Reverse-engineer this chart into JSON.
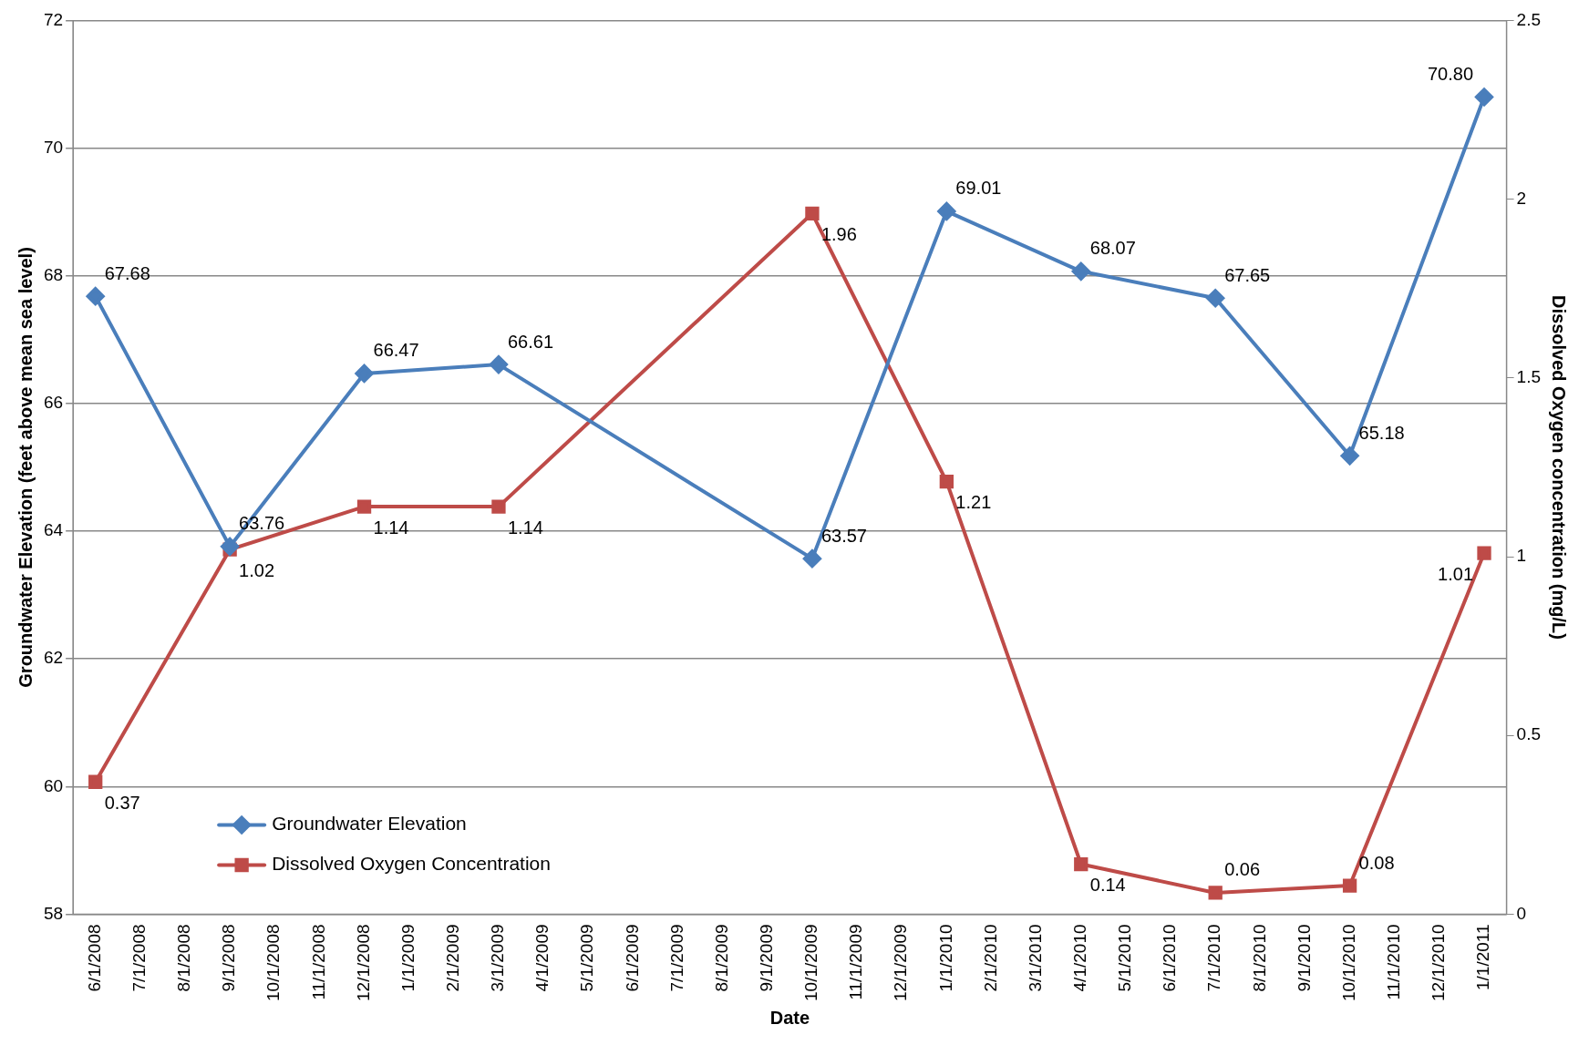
{
  "chart_data": {
    "type": "line",
    "xlabel": "Date",
    "ylabel": "Groundwater Elevation (feet above mean sea level)",
    "y2label": "Dissolved Oxygen concentration (mg/L)",
    "categories": [
      "6/1/2008",
      "7/1/2008",
      "8/1/2008",
      "9/1/2008",
      "10/1/2008",
      "11/1/2008",
      "12/1/2008",
      "1/1/2009",
      "2/1/2009",
      "3/1/2009",
      "4/1/2009",
      "5/1/2009",
      "6/1/2009",
      "7/1/2009",
      "8/1/2009",
      "9/1/2009",
      "10/1/2009",
      "11/1/2009",
      "12/1/2009",
      "1/1/2010",
      "2/1/2010",
      "3/1/2010",
      "4/1/2010",
      "5/1/2010",
      "6/1/2010",
      "7/1/2010",
      "8/1/2010",
      "9/1/2010",
      "10/1/2010",
      "11/1/2010",
      "12/1/2010",
      "1/1/2011"
    ],
    "series": [
      {
        "name": "Groundwater Elevation",
        "color": "#4a7ebb",
        "marker": "diamond",
        "values": [
          67.68,
          null,
          null,
          63.76,
          null,
          null,
          66.47,
          null,
          null,
          66.61,
          null,
          null,
          null,
          null,
          null,
          null,
          63.57,
          null,
          null,
          69.01,
          null,
          null,
          68.07,
          null,
          null,
          67.65,
          null,
          null,
          65.18,
          null,
          null,
          70.8
        ],
        "value_labels": [
          "67.68",
          null,
          null,
          "63.76",
          null,
          null,
          "66.47",
          null,
          null,
          "66.61",
          null,
          null,
          null,
          null,
          null,
          null,
          "63.57",
          null,
          null,
          "69.01",
          null,
          null,
          "68.07",
          null,
          null,
          "67.65",
          null,
          null,
          "65.18",
          null,
          null,
          "70.80"
        ]
      },
      {
        "name": "Dissolved Oxygen Concentration",
        "color": "#be4b48",
        "marker": "square",
        "axis": "y2",
        "values": [
          0.37,
          null,
          null,
          1.02,
          null,
          null,
          1.14,
          null,
          null,
          1.14,
          null,
          null,
          null,
          null,
          null,
          null,
          1.96,
          null,
          null,
          1.21,
          null,
          null,
          0.14,
          null,
          null,
          0.06,
          null,
          null,
          0.08,
          null,
          null,
          1.01
        ],
        "value_labels": [
          "0.37",
          null,
          null,
          "1.02",
          null,
          null,
          "1.14",
          null,
          null,
          "1.14",
          null,
          null,
          null,
          null,
          null,
          null,
          "1.96",
          null,
          null,
          "1.21",
          null,
          null,
          "0.14",
          null,
          null,
          "0.06",
          null,
          null,
          "0.08",
          null,
          null,
          "1.01"
        ]
      }
    ],
    "ylim": [
      58,
      72
    ],
    "yticks": [
      58,
      60,
      62,
      64,
      66,
      68,
      70,
      72
    ],
    "y2lim": [
      0,
      2.5
    ],
    "y2ticks": [
      0,
      0.5,
      1,
      1.5,
      2,
      2.5
    ],
    "grid": "y",
    "legend": "bottom left"
  }
}
